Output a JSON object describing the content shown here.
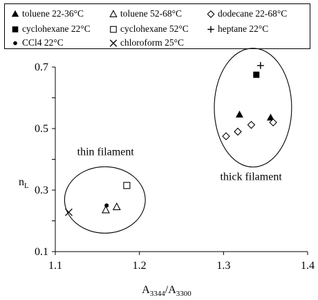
{
  "chart_data": {
    "type": "scatter",
    "xlabel": "A3344/A3300",
    "xlabel_main": "A",
    "xlabel_sub1": "3344",
    "xlabel_sep": "/A",
    "xlabel_sub2": "3300",
    "ylabel": "nL",
    "ylabel_main": "n",
    "ylabel_sub": "L",
    "xlim": [
      1.1,
      1.4
    ],
    "ylim": [
      0.1,
      0.7
    ],
    "xticks": [
      1.1,
      1.2,
      1.3,
      1.4
    ],
    "xtick_labels": [
      "1.1",
      "1.2",
      "1.3",
      "1.4"
    ],
    "yticks": [
      0.1,
      0.3,
      0.5,
      0.7
    ],
    "ytick_labels": [
      "0.1",
      "0.3",
      "0.5",
      "0.7"
    ],
    "grid": false,
    "legend_position": "top",
    "series": [
      {
        "name": "toluene 22-36°C",
        "marker": "filled-triangle",
        "points": [
          [
            1.319,
            0.545
          ],
          [
            1.356,
            0.535
          ]
        ]
      },
      {
        "name": "toluene 52-68°C",
        "marker": "open-triangle",
        "points": [
          [
            1.16,
            0.235
          ],
          [
            1.173,
            0.245
          ]
        ]
      },
      {
        "name": "dodecane 22-68°C",
        "marker": "open-diamond",
        "points": [
          [
            1.303,
            0.475
          ],
          [
            1.317,
            0.49
          ],
          [
            1.333,
            0.512
          ],
          [
            1.359,
            0.52
          ]
        ]
      },
      {
        "name": "cyclohexane 22°C",
        "marker": "filled-square",
        "points": [
          [
            1.339,
            0.675
          ]
        ]
      },
      {
        "name": "cyclohexane 52°C",
        "marker": "open-square",
        "points": [
          [
            1.185,
            0.315
          ]
        ]
      },
      {
        "name": "heptane 22°C",
        "marker": "plus",
        "points": [
          [
            1.344,
            0.705
          ]
        ]
      },
      {
        "name": "CCl4 22°C",
        "marker": "filled-circle",
        "points": [
          [
            1.161,
            0.25
          ]
        ]
      },
      {
        "name": "chloroform 25°C",
        "marker": "cross",
        "points": [
          [
            1.116,
            0.228
          ]
        ]
      }
    ],
    "annotations": [
      {
        "text": "thin filament",
        "x": 1.126,
        "y": 0.413
      },
      {
        "text": "thick filament",
        "x": 1.296,
        "y": 0.333
      }
    ],
    "ellipses": [
      {
        "name": "thin-filament-ellipse",
        "cx": 1.159,
        "cy": 0.268,
        "rx": 0.048,
        "ry": 0.108
      },
      {
        "name": "thick-filament-ellipse",
        "cx": 1.335,
        "cy": 0.568,
        "rx": 0.046,
        "ry": 0.193
      }
    ]
  }
}
